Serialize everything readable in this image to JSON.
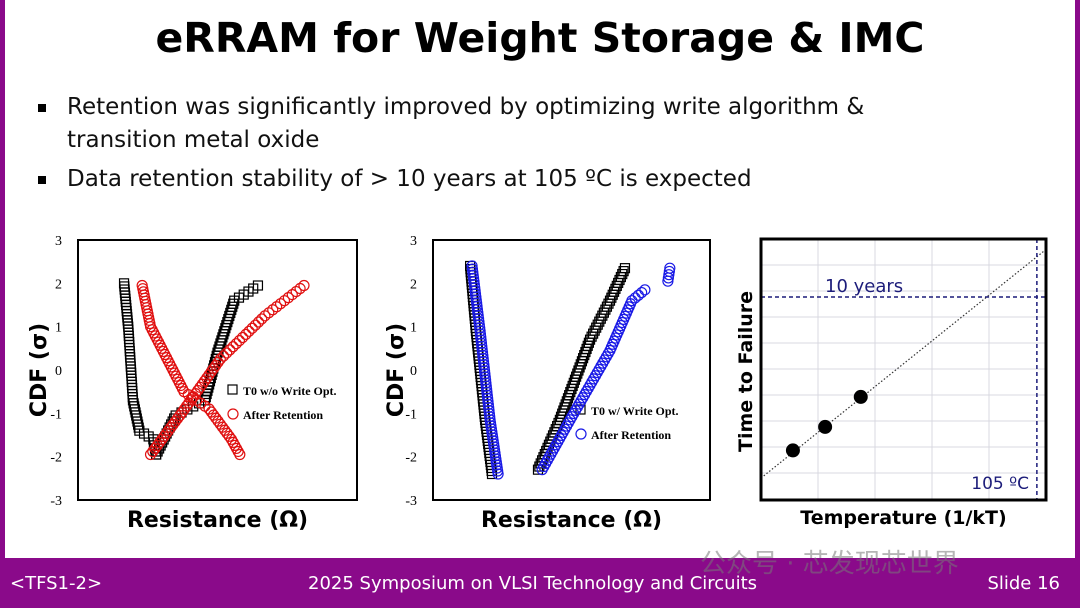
{
  "title": "eRRAM for Weight Storage & IMC",
  "bullets": [
    "Retention was significantly improved by optimizing write algorithm & transition metal oxide",
    "Data retention stability of > 10 years at 105 ºC is expected"
  ],
  "footer": {
    "left": "<TFS1-2>",
    "center": "2025 Symposium on VLSI Technology and Circuits",
    "right": "Slide 16"
  },
  "watermark": "公众号 · 芯发现芯世界",
  "colors": {
    "frame": "#8a0a8a",
    "red": "#e01010",
    "blue": "#1a1ae6",
    "navy": "#1c1c7a"
  },
  "chart_data": [
    {
      "type": "scatter",
      "xlabel": "Resistance (Ω)",
      "ylabel": "CDF (σ)",
      "ylim": [
        -3,
        3
      ],
      "yticks": [
        "3",
        "2",
        "1",
        "0",
        "-1",
        "-2",
        "-3"
      ],
      "legend_placement": "center-right",
      "series": [
        {
          "name": "T0 w/o Write Opt.",
          "marker": "square",
          "color": "#000000",
          "branches": [
            [
              [
                16.5,
                2
              ],
              [
                18,
                1
              ],
              [
                19.7,
                -0.7
              ],
              [
                22,
                -1.4
              ],
              [
                27,
                -1.6
              ],
              [
                28,
                -1.95
              ]
            ],
            [
              [
                28,
                -1.95
              ],
              [
                35,
                -1.05
              ],
              [
                45.5,
                -0.7
              ],
              [
                50,
                0.4
              ],
              [
                56,
                1.6
              ],
              [
                64.5,
                1.95
              ]
            ]
          ]
        },
        {
          "name": "After Retention",
          "marker": "circle",
          "color": "#e01010",
          "branches": [
            [
              [
                23,
                1.95
              ],
              [
                26,
                1
              ],
              [
                38,
                -0.5
              ],
              [
                47,
                -0.9
              ],
              [
                55,
                -1.6
              ],
              [
                58,
                -1.95
              ]
            ],
            [
              [
                26,
                -1.95
              ],
              [
                36.5,
                -1.05
              ],
              [
                51,
                0.25
              ],
              [
                67,
                1.25
              ],
              [
                81,
                1.95
              ]
            ]
          ]
        }
      ]
    },
    {
      "type": "scatter",
      "xlabel": "Resistance (Ω)",
      "ylabel": "CDF (σ)",
      "ylim": [
        -3,
        3
      ],
      "yticks": [
        "3",
        "2",
        "1",
        "0",
        "-1",
        "-2",
        "-3"
      ],
      "legend_placement": "center-right",
      "series": [
        {
          "name": "T0 w/ Write Opt.",
          "marker": "square",
          "color": "#000000",
          "branches": [
            [
              [
                13.4,
                2.4
              ],
              [
                15.5,
                0.9
              ],
              [
                18.8,
                -1.15
              ],
              [
                21.3,
                -2.4
              ]
            ],
            [
              [
                37.9,
                -2.3
              ],
              [
                45.8,
                -1.15
              ],
              [
                56.7,
                0.7
              ],
              [
                63.9,
                1.6
              ],
              [
                69.3,
                2.35
              ]
            ]
          ]
        },
        {
          "name": "After Retention",
          "marker": "circle",
          "color": "#1a1ae6",
          "branches": [
            [
              [
                14.1,
                2.4
              ],
              [
                17,
                0.9
              ],
              [
                20.6,
                -1.15
              ],
              [
                23.5,
                -2.4
              ]
            ],
            [
              [
                39.4,
                -2.3
              ],
              [
                49.5,
                -1.15
              ],
              [
                63.9,
                0.45
              ],
              [
                71.8,
                1.6
              ],
              [
                76.5,
                1.85
              ]
            ],
            [
              [
                84.8,
                2.05
              ],
              [
                85.5,
                2.35
              ]
            ]
          ]
        }
      ]
    },
    {
      "type": "scatter",
      "xlabel": "Temperature (1/kT)",
      "ylabel": "Time to Failure",
      "grid": true,
      "points": [
        [
          11.2,
          19
        ],
        [
          22.5,
          28
        ],
        [
          35,
          39.5
        ]
      ],
      "fit_line": [
        [
          0,
          8.4
        ],
        [
          100,
          96
        ]
      ],
      "annotations": [
        {
          "text": "10 years",
          "type": "hline",
          "y": 77.8
        },
        {
          "text": "105 ºC",
          "type": "vline",
          "x": 96.8
        }
      ]
    }
  ]
}
